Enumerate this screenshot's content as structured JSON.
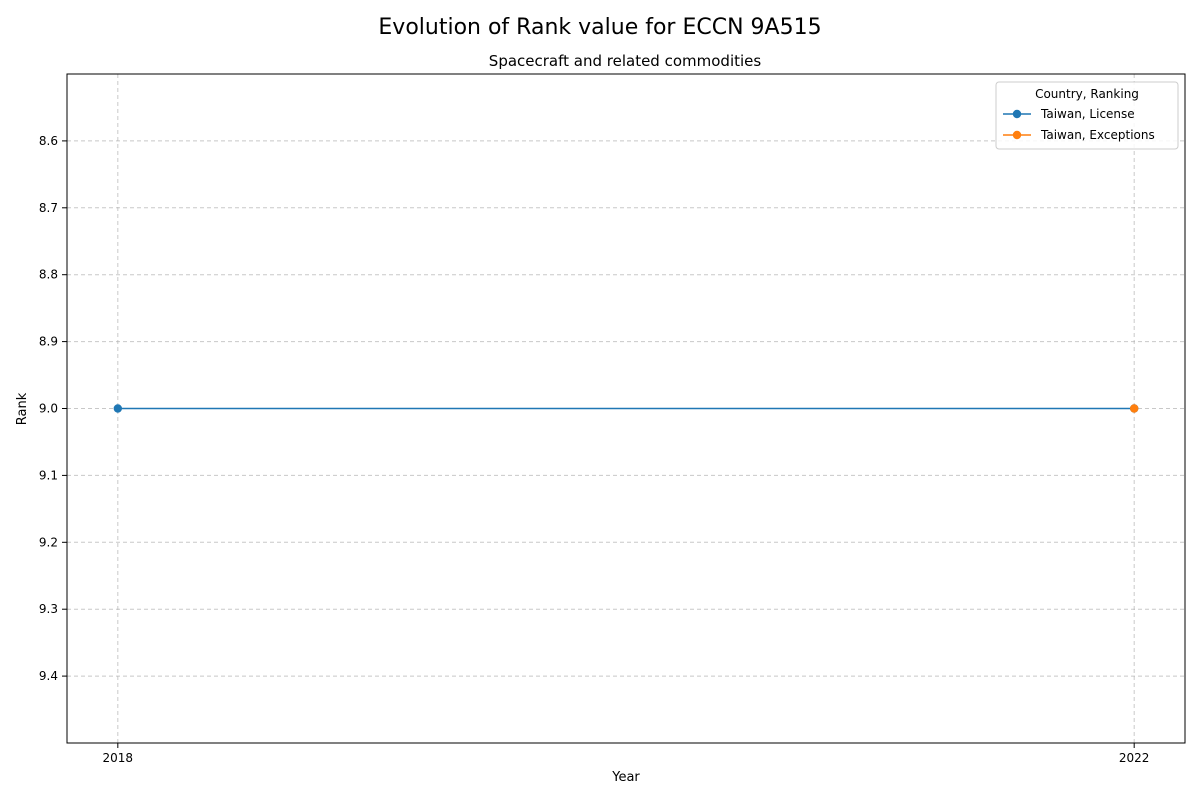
{
  "chart_data": {
    "type": "line",
    "suptitle": "Evolution of Rank value for ECCN 9A515",
    "title": "Spacecraft and related commodities",
    "xlabel": "Year",
    "ylabel": "Rank",
    "x_ticks": [
      "2018",
      "2022"
    ],
    "y_ticks": [
      "8.6",
      "8.7",
      "8.8",
      "8.9",
      "9.0",
      "9.1",
      "9.2",
      "9.3",
      "9.4"
    ],
    "xlim": [
      2017.8,
      2022.2
    ],
    "ylim": [
      9.5,
      8.5
    ],
    "y_inverted": true,
    "grid": true,
    "legend": {
      "title": "Country, Ranking",
      "placement": "top-right"
    },
    "series": [
      {
        "name": "Taiwan, License",
        "color": "#1f77b4",
        "x": [
          2018,
          2022
        ],
        "y": [
          9.0,
          9.0
        ]
      },
      {
        "name": "Taiwan, Exceptions",
        "color": "#ff7f0e",
        "x": [
          2022
        ],
        "y": [
          9.0
        ]
      }
    ]
  }
}
